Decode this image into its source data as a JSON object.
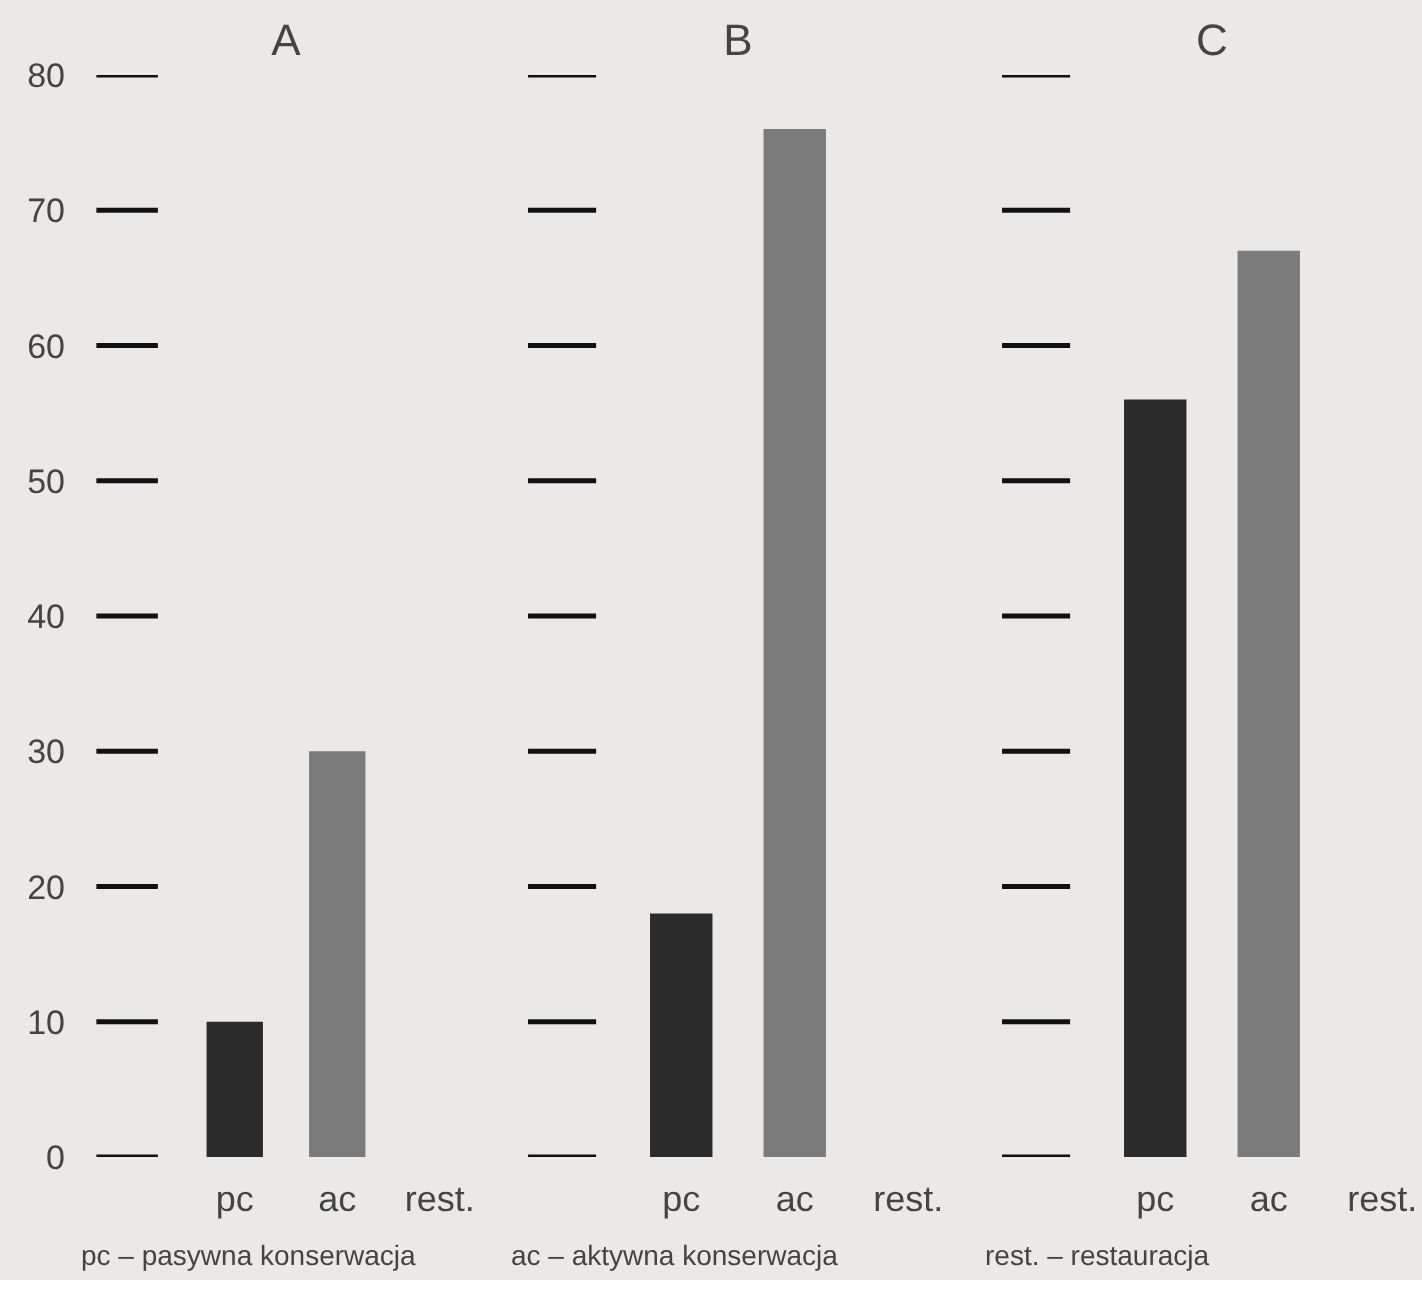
{
  "chart_data": [
    {
      "type": "bar",
      "title": "A",
      "categories": [
        "pc",
        "ac",
        "rest."
      ],
      "values": [
        10,
        30,
        null
      ],
      "colors": [
        "#2b2b2b",
        "#7b7b7b",
        "#7b7b7b"
      ],
      "ylim": [
        0,
        80
      ],
      "yticks": [
        0,
        10,
        20,
        30,
        40,
        50,
        60,
        70,
        80
      ],
      "grid": false,
      "annotations": [
        "pc – pasywna konserwacja"
      ]
    },
    {
      "type": "bar",
      "title": "B",
      "categories": [
        "pc",
        "ac",
        "rest."
      ],
      "values": [
        18,
        76,
        null
      ],
      "colors": [
        "#2b2b2b",
        "#7b7b7b",
        "#7b7b7b"
      ],
      "ylim": [
        0,
        80
      ],
      "yticks": [
        0,
        10,
        20,
        30,
        40,
        50,
        60,
        70,
        80
      ],
      "grid": false,
      "tick_labels": "x",
      "annotations": [
        "ac – aktywna konserwacja"
      ]
    },
    {
      "type": "bar",
      "title": "C",
      "categories": [
        "pc",
        "ac",
        "rest."
      ],
      "values": [
        56,
        67,
        null
      ],
      "colors": [
        "#2b2b2b",
        "#7b7b7b",
        "#7b7b7b"
      ],
      "ylim": [
        0,
        80
      ],
      "yticks": [
        0,
        10,
        20,
        30,
        40,
        50,
        60,
        70,
        80
      ],
      "grid": false,
      "tick_labels": "x",
      "annotations": [
        "rest. – restauracja"
      ]
    }
  ]
}
